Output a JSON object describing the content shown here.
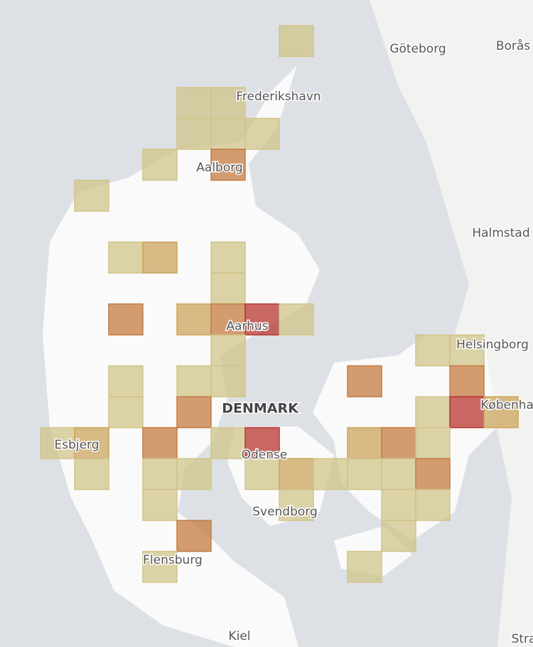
{
  "map": {
    "labels": {
      "goteborg": "Göteborg",
      "boras": "Borås",
      "frederikshavn": "Frederikshavn",
      "aalborg": "Aalborg",
      "halmstad": "Halmstad",
      "helsingborg": "Helsingborg",
      "kobenhavn": "København",
      "aarhus": "Aarhus",
      "country": "DENMARK",
      "esbjerg": "Esbjerg",
      "odense": "Odense",
      "svendborg": "Svendborg",
      "flensburg": "Flensburg",
      "kiel": "Kiel",
      "stralsund": "Stralsund"
    },
    "level_colors": [
      "#f6e7a3",
      "#f0c26c",
      "#e8924e",
      "#d9413a"
    ],
    "cells": [
      {
        "col": 7,
        "row": 0,
        "level": 1
      },
      {
        "col": 4,
        "row": 2,
        "level": 1
      },
      {
        "col": 5,
        "row": 2,
        "level": 1
      },
      {
        "col": 4,
        "row": 3,
        "level": 1
      },
      {
        "col": 5,
        "row": 3,
        "level": 1
      },
      {
        "col": 6,
        "row": 3,
        "level": 1
      },
      {
        "col": 3,
        "row": 4,
        "level": 1
      },
      {
        "col": 5,
        "row": 4,
        "level": 3
      },
      {
        "col": 1,
        "row": 5,
        "level": 1
      },
      {
        "col": 2,
        "row": 7,
        "level": 1
      },
      {
        "col": 3,
        "row": 7,
        "level": 2
      },
      {
        "col": 5,
        "row": 7,
        "level": 1
      },
      {
        "col": 5,
        "row": 8,
        "level": 1
      },
      {
        "col": 2,
        "row": 9,
        "level": 3
      },
      {
        "col": 4,
        "row": 9,
        "level": 2
      },
      {
        "col": 5,
        "row": 9,
        "level": 3
      },
      {
        "col": 6,
        "row": 9,
        "level": 4
      },
      {
        "col": 7,
        "row": 9,
        "level": 1
      },
      {
        "col": 5,
        "row": 10,
        "level": 1
      },
      {
        "col": 11,
        "row": 10,
        "level": 1
      },
      {
        "col": 12,
        "row": 10,
        "level": 1
      },
      {
        "col": 2,
        "row": 11,
        "level": 1
      },
      {
        "col": 4,
        "row": 11,
        "level": 1
      },
      {
        "col": 5,
        "row": 11,
        "level": 1
      },
      {
        "col": 9,
        "row": 11,
        "level": 3
      },
      {
        "col": 12,
        "row": 11,
        "level": 3
      },
      {
        "col": 2,
        "row": 12,
        "level": 1
      },
      {
        "col": 4,
        "row": 12,
        "level": 3
      },
      {
        "col": 11,
        "row": 12,
        "level": 1
      },
      {
        "col": 12,
        "row": 12,
        "level": 4
      },
      {
        "col": 13,
        "row": 12,
        "level": 2
      },
      {
        "col": 0,
        "row": 13,
        "level": 1
      },
      {
        "col": 1,
        "row": 13,
        "level": 2
      },
      {
        "col": 3,
        "row": 13,
        "level": 3
      },
      {
        "col": 5,
        "row": 13,
        "level": 1
      },
      {
        "col": 6,
        "row": 13,
        "level": 4
      },
      {
        "col": 9,
        "row": 13,
        "level": 2
      },
      {
        "col": 10,
        "row": 13,
        "level": 3
      },
      {
        "col": 11,
        "row": 13,
        "level": 1
      },
      {
        "col": 1,
        "row": 14,
        "level": 1
      },
      {
        "col": 3,
        "row": 14,
        "level": 1
      },
      {
        "col": 4,
        "row": 14,
        "level": 1
      },
      {
        "col": 6,
        "row": 14,
        "level": 1
      },
      {
        "col": 7,
        "row": 14,
        "level": 2
      },
      {
        "col": 8,
        "row": 14,
        "level": 1
      },
      {
        "col": 9,
        "row": 14,
        "level": 1
      },
      {
        "col": 10,
        "row": 14,
        "level": 1
      },
      {
        "col": 11,
        "row": 14,
        "level": 3
      },
      {
        "col": 3,
        "row": 15,
        "level": 1
      },
      {
        "col": 7,
        "row": 15,
        "level": 1
      },
      {
        "col": 10,
        "row": 15,
        "level": 1
      },
      {
        "col": 11,
        "row": 15,
        "level": 1
      },
      {
        "col": 4,
        "row": 16,
        "level": 3
      },
      {
        "col": 10,
        "row": 16,
        "level": 1
      },
      {
        "col": 3,
        "row": 17,
        "level": 1
      },
      {
        "col": 9,
        "row": 17,
        "level": 1
      }
    ]
  }
}
